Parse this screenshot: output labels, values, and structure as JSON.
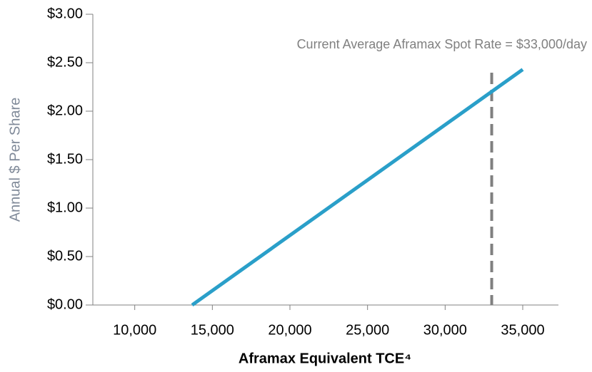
{
  "chart_data": {
    "type": "line",
    "x_label": "Aframax Equivalent TCE⁴",
    "y_label": "Annual $ Per Share",
    "annotation": {
      "text": "Current Average Aframax Spot Rate = $33,000/day",
      "x": 33000,
      "color": "#808080"
    },
    "x": [
      13700,
      35000
    ],
    "series": [
      {
        "name": null,
        "color": "#2a9fc9",
        "values": [
          0,
          2.43
        ]
      }
    ],
    "xlim": [
      7300,
      37300
    ],
    "xticks": [
      {
        "value": 10000,
        "label": "10,000"
      },
      {
        "value": 15000,
        "label": "15,000"
      },
      {
        "value": 20000,
        "label": "20,000"
      },
      {
        "value": 25000,
        "label": "25,000"
      },
      {
        "value": 30000,
        "label": "30,000"
      },
      {
        "value": 35000,
        "label": "35,000"
      }
    ],
    "ylim": [
      0,
      3
    ],
    "yticks": [
      {
        "value": 0,
        "label": "$0.00"
      },
      {
        "value": 0.5,
        "label": "$0.50"
      },
      {
        "value": 1,
        "label": "$1.00"
      },
      {
        "value": 1.5,
        "label": "$1.50"
      },
      {
        "value": 2,
        "label": "$2.00"
      },
      {
        "value": 2.5,
        "label": "$2.50"
      },
      {
        "value": 3,
        "label": "$3.00"
      }
    ]
  }
}
